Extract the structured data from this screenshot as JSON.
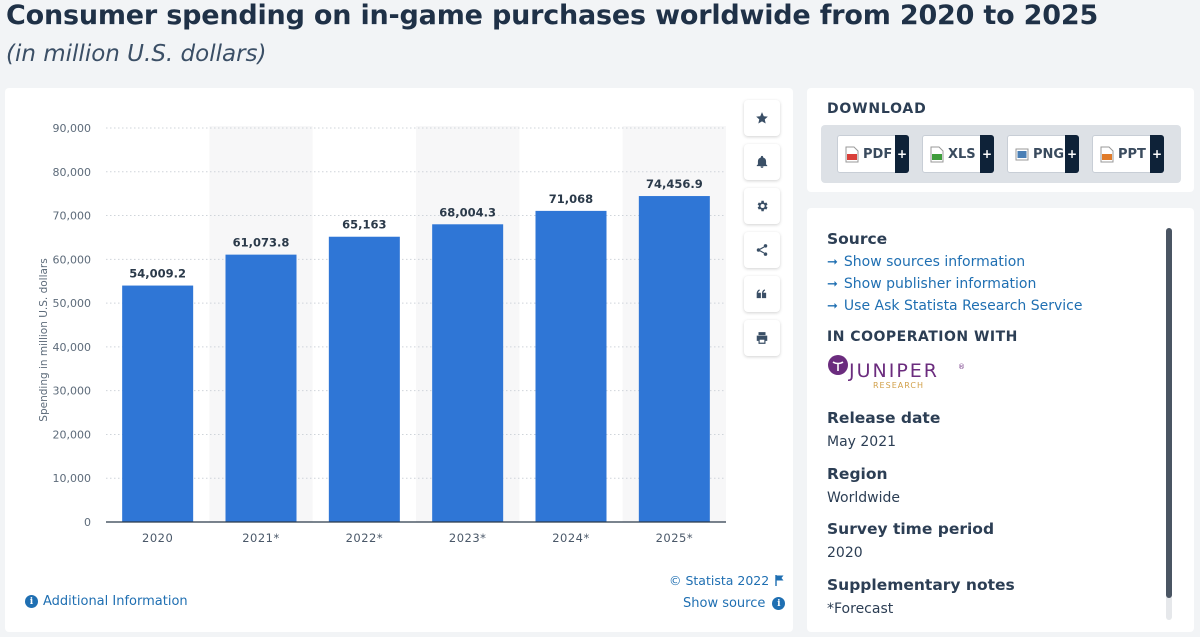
{
  "page": {
    "title": "Consumer spending on in-game purchases worldwide from 2020 to 2025",
    "subtitle": "(in million U.S. dollars)"
  },
  "chart_data": {
    "type": "bar",
    "categories": [
      "2020",
      "2021*",
      "2022*",
      "2023*",
      "2024*",
      "2025*"
    ],
    "values": [
      54009.2,
      61073.8,
      65163,
      68004.3,
      71068,
      74456.9
    ],
    "value_labels": [
      "54,009.2",
      "61,073.8",
      "65,163",
      "68,004.3",
      "71,068",
      "74,456.9"
    ],
    "ylabel": "Spending in million U.S. dollars",
    "xlabel": "",
    "ylim": [
      0,
      90000
    ],
    "yticks": [
      0,
      10000,
      20000,
      30000,
      40000,
      50000,
      60000,
      70000,
      80000,
      90000
    ],
    "ytick_labels": [
      "0",
      "10,000",
      "20,000",
      "30,000",
      "40,000",
      "50,000",
      "60,000",
      "70,000",
      "80,000",
      "90,000"
    ],
    "grid": true,
    "bar_color": "#2f76d6"
  },
  "chart_footer": {
    "copyright": "© Statista 2022",
    "additional_info": "Additional Information",
    "show_source": "Show source"
  },
  "toolbar": {
    "icons": [
      "star-icon",
      "bell-icon",
      "gear-icon",
      "share-icon",
      "quote-icon",
      "print-icon"
    ]
  },
  "download": {
    "title": "DOWNLOAD",
    "buttons": [
      {
        "label": "PDF",
        "color": "#d9403a"
      },
      {
        "label": "XLS",
        "color": "#3f9d3c"
      },
      {
        "label": "PNG",
        "color": "#4a7fb5"
      },
      {
        "label": "PPT",
        "color": "#e07b2a"
      }
    ],
    "plus": "+"
  },
  "info": {
    "source_head": "Source",
    "source_links": [
      "Show sources information",
      "Show publisher information",
      "Use Ask Statista Research Service"
    ],
    "arrow": "➞",
    "coop_head": "IN COOPERATION WITH",
    "partner_logo_text": "JUNIPER",
    "partner_logo_sub": "RESEARCH",
    "release_head": "Release date",
    "release_val": "May 2021",
    "region_head": "Region",
    "region_val": "Worldwide",
    "survey_head": "Survey time period",
    "survey_val": "2020",
    "notes_head": "Supplementary notes",
    "notes_val": "*Forecast"
  }
}
